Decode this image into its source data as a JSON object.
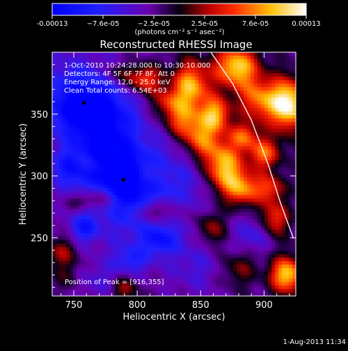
{
  "colorbar": {
    "ticks": [
      "-0.00013",
      "−7.6e-05",
      "−2.5e-05",
      "2.5e-05",
      "7.6e-05",
      "0.00013"
    ],
    "units": "(photons cm⁻² s⁻¹ asec⁻²)"
  },
  "chart_data": {
    "type": "heatmap",
    "title": "Reconstructed RHESSI Image",
    "xlabel": "Heliocentric X (arcsec)",
    "ylabel": "Heliocentric Y (arcsec)",
    "xlim": [
      733,
      925
    ],
    "ylim": [
      203,
      400
    ],
    "xticks": [
      750,
      800,
      850,
      900
    ],
    "yticks": [
      250,
      300,
      350
    ],
    "colorbar_range": [
      -0.00013,
      0.00013
    ],
    "annotations": [
      "1-Oct-2010 10:24:28.000 to 10:30:10.000",
      "Detectors: 4F 5F 6F 7F 8F, Att 0",
      "Energy Range: 12.0 - 25.0 keV",
      "Clean    Total counts: 6.54E+03"
    ],
    "peak_label": "Position of Peak = [916,355]",
    "markers": [
      {
        "x": 758,
        "y": 359
      },
      {
        "x": 789,
        "y": 297
      }
    ],
    "limb_curve": [
      {
        "x": 858,
        "y": 400
      },
      {
        "x": 875,
        "y": 375
      },
      {
        "x": 890,
        "y": 345
      },
      {
        "x": 903,
        "y": 310
      },
      {
        "x": 913,
        "y": 278
      },
      {
        "x": 923,
        "y": 250
      }
    ],
    "features": [
      {
        "x": 740,
        "y": 385,
        "v": -2.2e-05,
        "sx": 35,
        "sy": 30
      },
      {
        "x": 757,
        "y": 357,
        "v": -9.5e-05,
        "sx": 22,
        "sy": 18
      },
      {
        "x": 775,
        "y": 330,
        "v": -8.5e-05,
        "sx": 20,
        "sy": 22
      },
      {
        "x": 790,
        "y": 296,
        "v": -9.5e-05,
        "sx": 16,
        "sy": 16
      },
      {
        "x": 748,
        "y": 305,
        "v": -7e-05,
        "sx": 12,
        "sy": 11
      },
      {
        "x": 758,
        "y": 258,
        "v": -7e-05,
        "sx": 8,
        "sy": 8
      },
      {
        "x": 818,
        "y": 248,
        "v": -6e-05,
        "sx": 10,
        "sy": 8
      },
      {
        "x": 795,
        "y": 232,
        "v": -5e-05,
        "sx": 10,
        "sy": 8
      },
      {
        "x": 892,
        "y": 253,
        "v": -4.5e-05,
        "sx": 10,
        "sy": 10
      },
      {
        "x": 800,
        "y": 268,
        "v": -4e-05,
        "sx": 30,
        "sy": 25
      },
      {
        "x": 830,
        "y": 300,
        "v": -3.5e-05,
        "sx": 25,
        "sy": 30
      },
      {
        "x": 772,
        "y": 215,
        "v": -3e-05,
        "sx": 18,
        "sy": 10
      },
      {
        "x": 847,
        "y": 225,
        "v": -3e-05,
        "sx": 15,
        "sy": 15
      },
      {
        "x": 783,
        "y": 383,
        "v": 4e-05,
        "sx": 8,
        "sy": 6
      },
      {
        "x": 805,
        "y": 378,
        "v": 9e-05,
        "sx": 10,
        "sy": 8
      },
      {
        "x": 823,
        "y": 360,
        "v": 6e-05,
        "sx": 9,
        "sy": 8
      },
      {
        "x": 842,
        "y": 372,
        "v": 0.00012,
        "sx": 10,
        "sy": 14
      },
      {
        "x": 835,
        "y": 345,
        "v": 8e-05,
        "sx": 10,
        "sy": 10
      },
      {
        "x": 850,
        "y": 330,
        "v": 0.0001,
        "sx": 10,
        "sy": 12
      },
      {
        "x": 862,
        "y": 350,
        "v": 0.00011,
        "sx": 8,
        "sy": 10
      },
      {
        "x": 868,
        "y": 308,
        "v": 0.00013,
        "sx": 10,
        "sy": 14
      },
      {
        "x": 878,
        "y": 388,
        "v": 0.00013,
        "sx": 12,
        "sy": 12
      },
      {
        "x": 895,
        "y": 362,
        "v": 9e-05,
        "sx": 10,
        "sy": 12
      },
      {
        "x": 918,
        "y": 358,
        "v": 0.00016,
        "sx": 10,
        "sy": 14
      },
      {
        "x": 884,
        "y": 332,
        "v": 8e-05,
        "sx": 8,
        "sy": 8
      },
      {
        "x": 900,
        "y": 318,
        "v": 9e-05,
        "sx": 9,
        "sy": 9
      },
      {
        "x": 883,
        "y": 290,
        "v": 0.0001,
        "sx": 10,
        "sy": 10
      },
      {
        "x": 905,
        "y": 290,
        "v": 7e-05,
        "sx": 8,
        "sy": 8
      },
      {
        "x": 908,
        "y": 265,
        "v": 8e-05,
        "sx": 8,
        "sy": 10
      },
      {
        "x": 918,
        "y": 220,
        "v": 0.00013,
        "sx": 9,
        "sy": 10
      },
      {
        "x": 880,
        "y": 225,
        "v": 4e-05,
        "sx": 10,
        "sy": 10
      },
      {
        "x": 858,
        "y": 258,
        "v": 6e-05,
        "sx": 8,
        "sy": 10
      },
      {
        "x": 812,
        "y": 272,
        "v": 7e-05,
        "sx": 8,
        "sy": 7
      },
      {
        "x": 808,
        "y": 300,
        "v": 4e-05,
        "sx": 7,
        "sy": 6
      },
      {
        "x": 773,
        "y": 282,
        "v": 5e-05,
        "sx": 9,
        "sy": 6
      },
      {
        "x": 757,
        "y": 280,
        "v": 3e-05,
        "sx": 8,
        "sy": 5
      },
      {
        "x": 740,
        "y": 238,
        "v": 5e-05,
        "sx": 9,
        "sy": 9
      },
      {
        "x": 746,
        "y": 218,
        "v": 3e-05,
        "sx": 8,
        "sy": 8
      },
      {
        "x": 790,
        "y": 210,
        "v": 6e-05,
        "sx": 8,
        "sy": 8
      },
      {
        "x": 760,
        "y": 310,
        "v": 3e-05,
        "sx": 6,
        "sy": 6
      },
      {
        "x": 832,
        "y": 270,
        "v": 3.5e-05,
        "sx": 8,
        "sy": 8
      }
    ]
  },
  "timestamp": "1-Aug-2013 11:34"
}
